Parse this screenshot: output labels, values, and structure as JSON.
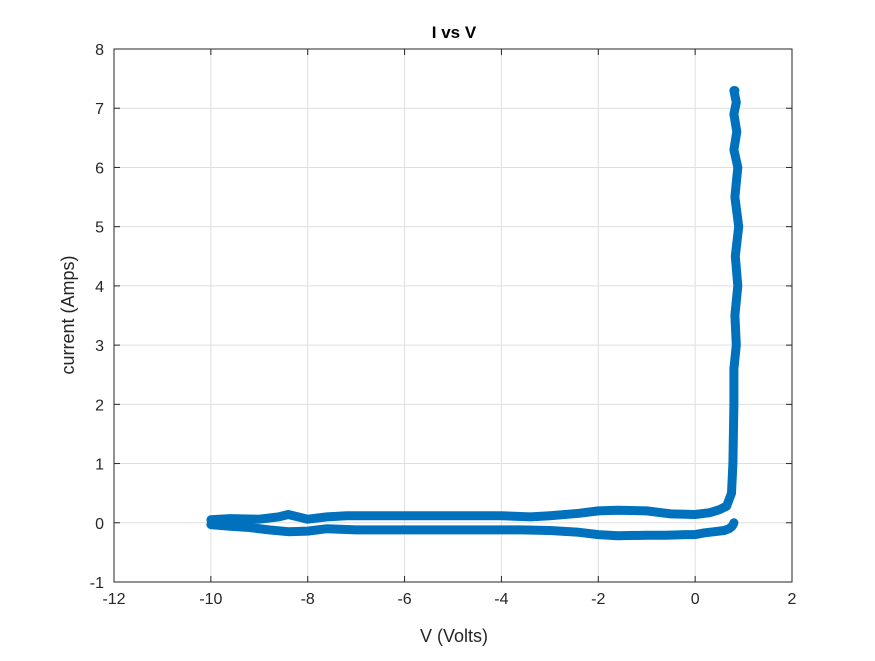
{
  "chart_data": {
    "type": "line",
    "title": "I vs V",
    "xlabel": "V (Volts)",
    "ylabel": "current (Amps)",
    "xlim": [
      -12,
      2
    ],
    "ylim": [
      -1,
      8
    ],
    "xticks": [
      -12,
      -10,
      -8,
      -6,
      -4,
      -2,
      0,
      2
    ],
    "yticks": [
      -1,
      0,
      1,
      2,
      3,
      4,
      5,
      6,
      7,
      8
    ],
    "xtick_labels": [
      "-12",
      "-10",
      "-8",
      "-6",
      "-4",
      "-2",
      "0",
      "2"
    ],
    "ytick_labels": [
      "-1",
      "0",
      "1",
      "2",
      "3",
      "4",
      "5",
      "6",
      "7",
      "8"
    ],
    "grid": true,
    "legend": "none",
    "line_color": "#0072BD",
    "series": [
      {
        "x": [
          -10,
          -9.6,
          -9,
          -8.6,
          -8.4,
          -8.2,
          -8,
          -7.6,
          -7.2,
          -7,
          -6,
          -5,
          -4,
          -3.4,
          -3,
          -2.4,
          -2,
          -1.6,
          -1,
          -0.5,
          0,
          0.3,
          0.5,
          0.65,
          0.75,
          0.78,
          0.8,
          0.8,
          0.85,
          0.82,
          0.88,
          0.83,
          0.9,
          0.82,
          0.88,
          0.8,
          0.86,
          0.8,
          0.85,
          0.8,
          0.82
        ],
        "y": [
          0.05,
          0.07,
          0.06,
          0.1,
          0.14,
          0.1,
          0.06,
          0.1,
          0.12,
          0.12,
          0.12,
          0.12,
          0.12,
          0.1,
          0.12,
          0.16,
          0.2,
          0.21,
          0.2,
          0.15,
          0.14,
          0.17,
          0.22,
          0.28,
          0.5,
          1.0,
          2.0,
          2.6,
          3.0,
          3.5,
          4.0,
          4.5,
          5.0,
          5.5,
          6.0,
          6.3,
          6.6,
          6.9,
          7.1,
          7.3,
          7.3
        ]
      },
      {
        "x": [
          0.8,
          0.78,
          0.75,
          0.7,
          0.6,
          0.4,
          0.2,
          0,
          -0.2,
          -0.6,
          -1,
          -1.6,
          -2,
          -2.4,
          -3,
          -3.6,
          -4,
          -5,
          -6,
          -7,
          -7.6,
          -8,
          -8.4,
          -8.8,
          -9.2,
          -9.6,
          -10
        ],
        "y": [
          0.0,
          -0.04,
          -0.07,
          -0.1,
          -0.13,
          -0.15,
          -0.17,
          -0.2,
          -0.2,
          -0.21,
          -0.21,
          -0.22,
          -0.2,
          -0.16,
          -0.13,
          -0.12,
          -0.12,
          -0.12,
          -0.12,
          -0.12,
          -0.1,
          -0.14,
          -0.15,
          -0.12,
          -0.08,
          -0.06,
          -0.03
        ]
      }
    ]
  }
}
